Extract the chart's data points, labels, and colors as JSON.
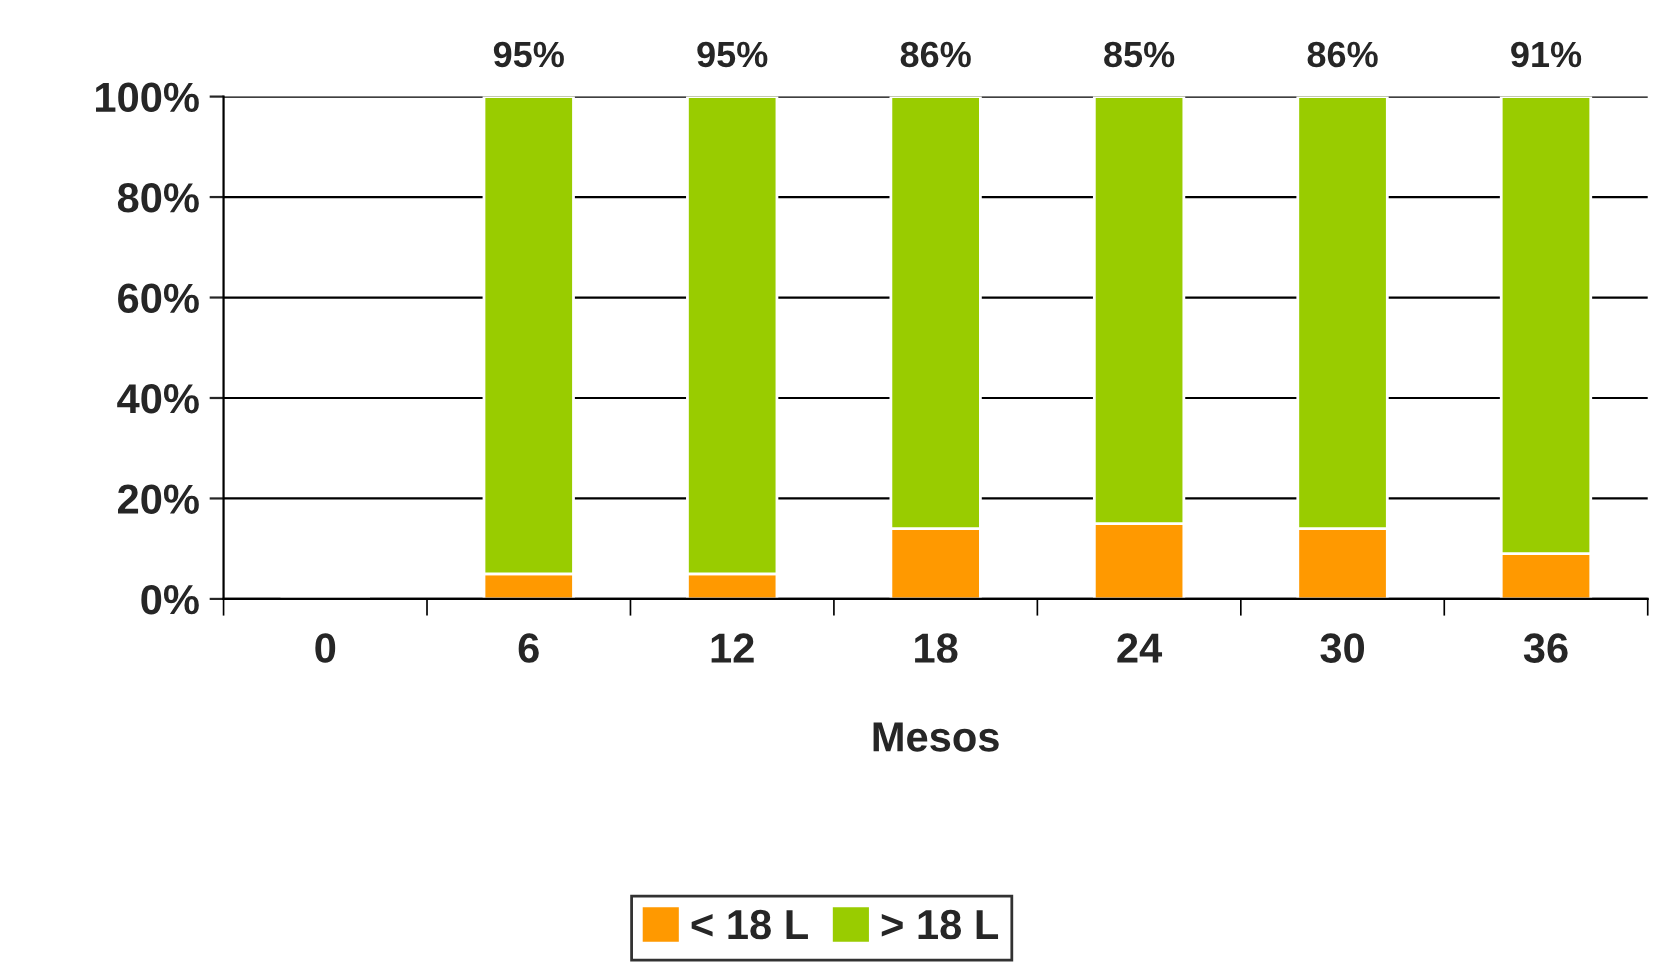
{
  "chart_data": {
    "type": "bar",
    "stacked": true,
    "xlabel": "Mesos",
    "categories": [
      "0",
      "6",
      "12",
      "18",
      "24",
      "30",
      "36"
    ],
    "series": [
      {
        "name": "< 18 L",
        "color": "#ff9900",
        "values": [
          null,
          5,
          5,
          14,
          15,
          14,
          9
        ]
      },
      {
        "name": "> 18 L",
        "color": "#99cc00",
        "values": [
          null,
          95,
          95,
          86,
          85,
          86,
          91
        ],
        "value_labels": [
          null,
          "95%",
          "95%",
          "86%",
          "85%",
          "86%",
          "91%"
        ]
      }
    ],
    "ylim": [
      0,
      100
    ],
    "yticks": [
      {
        "value": 0,
        "label": "0%"
      },
      {
        "value": 20,
        "label": "20%"
      },
      {
        "value": 40,
        "label": "40%"
      },
      {
        "value": 60,
        "label": "60%"
      },
      {
        "value": 80,
        "label": "80%"
      },
      {
        "value": 100,
        "label": "100%"
      }
    ],
    "grid": "y",
    "legend": "bottom"
  }
}
